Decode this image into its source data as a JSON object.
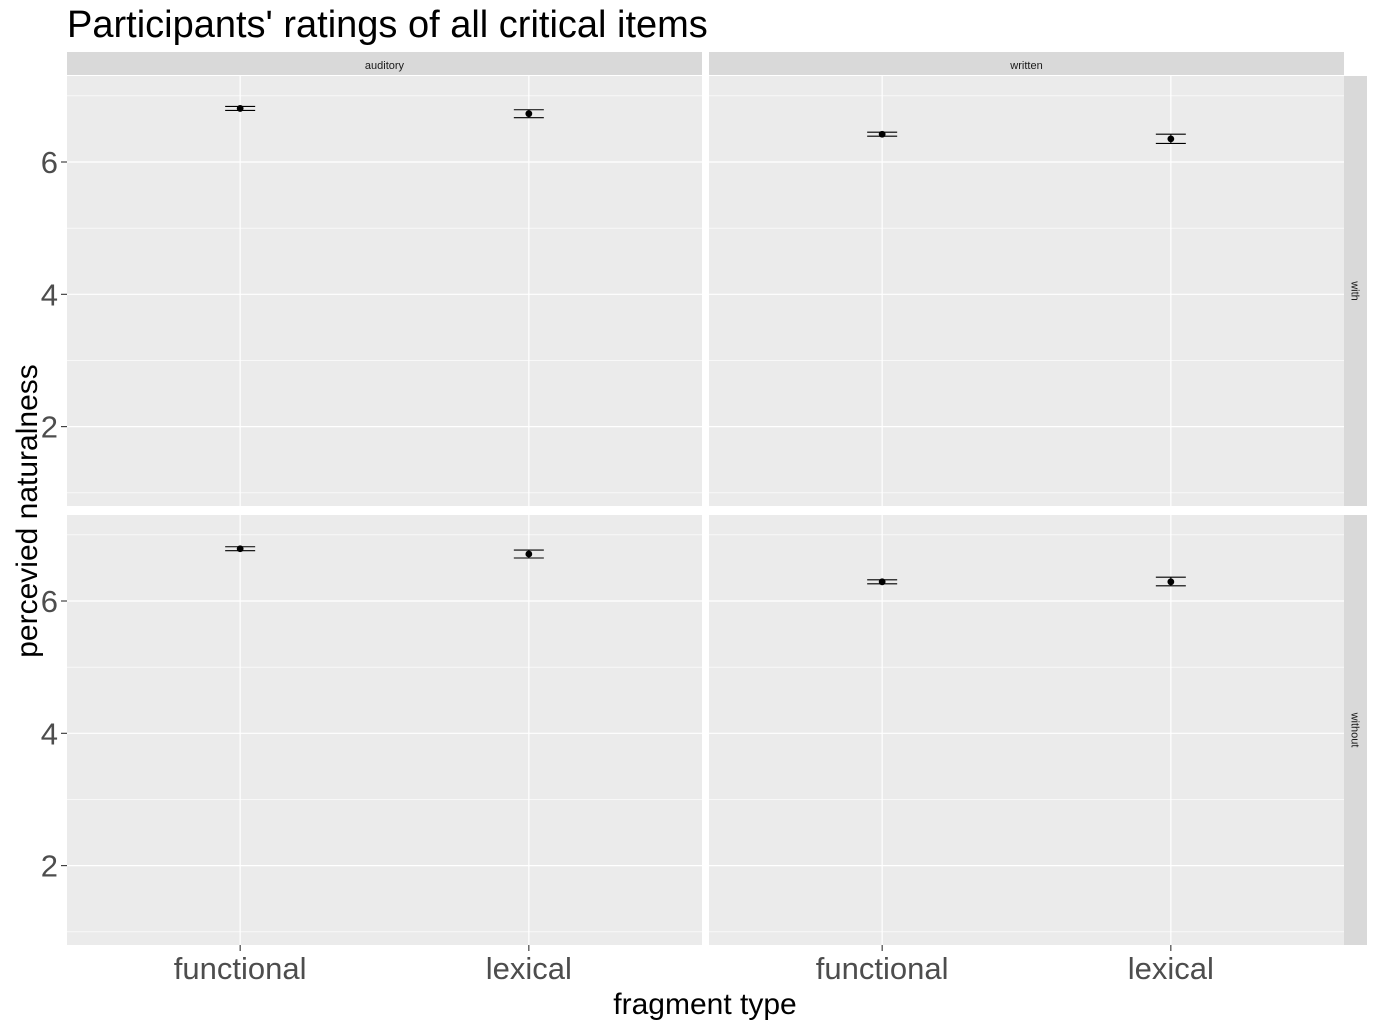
{
  "chart_data": {
    "type": "scatter",
    "title": "Participants' ratings of all critical items",
    "xlabel": "fragment type",
    "ylabel": "percevied naturalness",
    "categories": [
      "functional",
      "lexical"
    ],
    "yticks": [
      2,
      4,
      6
    ],
    "ylim": [
      0.8,
      7.3
    ],
    "grid": true,
    "facet_columns": [
      "auditory",
      "written"
    ],
    "facet_rows": [
      "with",
      "without"
    ],
    "panels": [
      {
        "column": "auditory",
        "row": "with",
        "points": [
          {
            "x": "functional",
            "y": 6.81,
            "ymin": 6.78,
            "ymax": 6.84
          },
          {
            "x": "lexical",
            "y": 6.73,
            "ymin": 6.67,
            "ymax": 6.79
          }
        ]
      },
      {
        "column": "written",
        "row": "with",
        "points": [
          {
            "x": "functional",
            "y": 6.42,
            "ymin": 6.39,
            "ymax": 6.45
          },
          {
            "x": "lexical",
            "y": 6.35,
            "ymin": 6.28,
            "ymax": 6.42
          }
        ]
      },
      {
        "column": "auditory",
        "row": "without",
        "points": [
          {
            "x": "functional",
            "y": 6.79,
            "ymin": 6.76,
            "ymax": 6.82
          },
          {
            "x": "lexical",
            "y": 6.71,
            "ymin": 6.65,
            "ymax": 6.77
          }
        ]
      },
      {
        "column": "written",
        "row": "without",
        "points": [
          {
            "x": "functional",
            "y": 6.29,
            "ymin": 6.26,
            "ymax": 6.32
          },
          {
            "x": "lexical",
            "y": 6.29,
            "ymin": 6.23,
            "ymax": 6.36
          }
        ]
      }
    ],
    "colors": {
      "panel_bg": "#ebebeb",
      "strip_bg": "#d9d9d9",
      "grid": "#ffffff",
      "point": "#000000"
    }
  }
}
